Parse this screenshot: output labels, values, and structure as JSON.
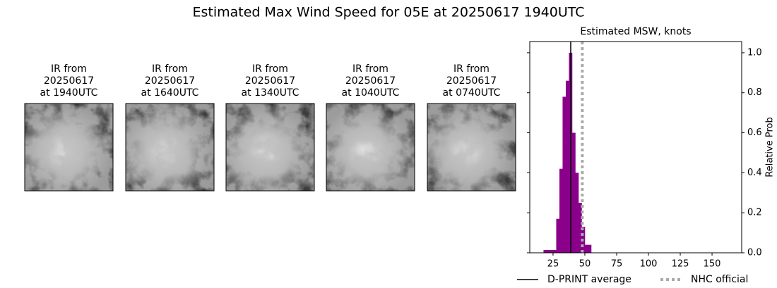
{
  "title": "Estimated Max Wind Speed for 05E at 20250617 1940UTC",
  "panels": [
    {
      "lines": [
        "IR from",
        "20250617",
        "at 1940UTC"
      ]
    },
    {
      "lines": [
        "IR from",
        "20250617",
        "at 1640UTC"
      ]
    },
    {
      "lines": [
        "IR from",
        "20250617",
        "at 1340UTC"
      ]
    },
    {
      "lines": [
        "IR from",
        "20250617",
        "at 1040UTC"
      ]
    },
    {
      "lines": [
        "IR from",
        "20250617",
        "at 0740UTC"
      ]
    }
  ],
  "chart_data": {
    "type": "histogram",
    "title": "Estimated MSW, knots",
    "ylabel": "Relative Prob",
    "bins": [
      17.5,
      20,
      22.5,
      25,
      27.5,
      30,
      32.5,
      35,
      37.5,
      40,
      42.5,
      45,
      47.5,
      50,
      52.5,
      55
    ],
    "values": [
      0.014,
      0.014,
      0.014,
      0.014,
      0.17,
      0.42,
      0.78,
      0.86,
      1.0,
      0.6,
      0.4,
      0.25,
      0.13,
      0.04,
      0.04
    ],
    "color": "#8b008b",
    "xlim": [
      6.7,
      173.3
    ],
    "xticks": [
      25,
      50,
      75,
      100,
      125,
      150
    ],
    "ylim": [
      0,
      1.056
    ],
    "yticks": [
      {
        "value": 0,
        "label": "0.0"
      },
      0.2,
      0.4,
      0.6,
      0.8,
      {
        "value": 1,
        "label": "1.0"
      }
    ],
    "lines": [
      {
        "name": "D-PRINT average",
        "x": 38.9,
        "color": "#000000",
        "style": "solid"
      },
      {
        "name": "NHC official",
        "x": 48,
        "color": "#aaaaaa",
        "style": "dotted"
      }
    ]
  }
}
